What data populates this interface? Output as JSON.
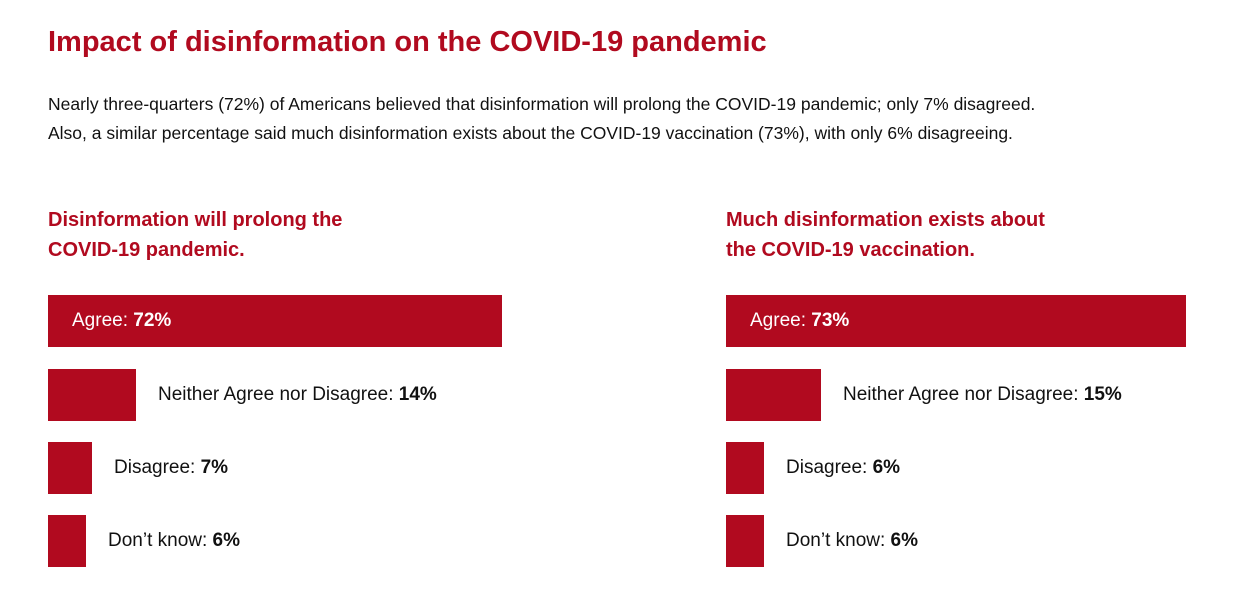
{
  "title": "Impact of disinformation on the COVID-19 pandemic",
  "intro": {
    "line1": "Nearly three-quarters (72%) of Americans believed that disinformation will prolong the COVID-19 pandemic; only 7% disagreed.",
    "line2": "Also, a similar percentage said much disinformation exists about the COVID-19 vaccination (73%), with only 6% disagreeing."
  },
  "colors": {
    "accent": "#b10a1f"
  },
  "chart_data": [
    {
      "type": "bar",
      "orientation": "horizontal",
      "title_lines": [
        "Disinformation will prolong the",
        "COVID-19 pandemic."
      ],
      "categories": [
        "Agree:",
        "Neither Agree nor Disagree:",
        "Disagree:",
        "Don’t know:"
      ],
      "values": [
        72,
        14,
        7,
        6
      ],
      "value_labels": [
        "72%",
        "14%",
        "7%",
        "6%"
      ],
      "unit": "%",
      "xlim": [
        0,
        100
      ],
      "axes_visible": false,
      "grid": false,
      "legend": false
    },
    {
      "type": "bar",
      "orientation": "horizontal",
      "title_lines": [
        "Much disinformation exists about",
        "the COVID-19 vaccination."
      ],
      "categories": [
        "Agree:",
        "Neither Agree nor Disagree:",
        "Disagree:",
        "Don’t know:"
      ],
      "values": [
        73,
        15,
        6,
        6
      ],
      "value_labels": [
        "73%",
        "15%",
        "6%",
        "6%"
      ],
      "unit": "%",
      "xlim": [
        0,
        100
      ],
      "axes_visible": false,
      "grid": false,
      "legend": false
    }
  ]
}
